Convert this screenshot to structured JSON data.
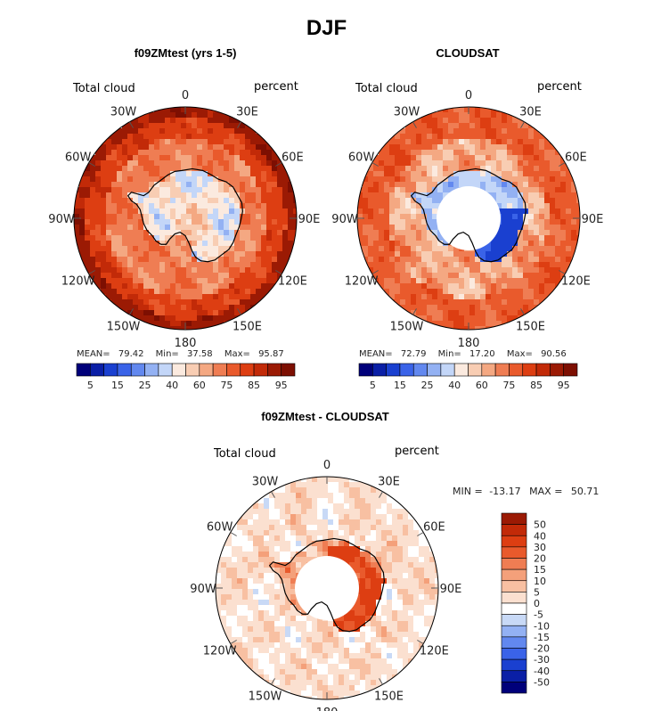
{
  "page_title": "DJF",
  "panels": [
    {
      "title": "f09ZMtest (yrs 1-5)",
      "left_label": "Total cloud",
      "right_label": "percent",
      "stats": {
        "mean_label": "MEAN=",
        "mean": "79.42",
        "min_label": "Min=",
        "min": "37.58",
        "max_label": "Max=",
        "max": "95.87"
      }
    },
    {
      "title": "CLOUDSAT",
      "left_label": "Total cloud",
      "right_label": "percent",
      "stats": {
        "mean_label": "MEAN=",
        "mean": "72.79",
        "min_label": "Min=",
        "min": "17.20",
        "max_label": "Max=",
        "max": "90.56"
      }
    },
    {
      "title": "f09ZMtest - CLOUDSAT",
      "left_label": "Total cloud",
      "right_label": "percent",
      "stats": {
        "min_label": "MIN =",
        "min": "-13.17",
        "max_label": "MAX =",
        "max": "50.71"
      }
    }
  ],
  "lon_labels": [
    "0",
    "30E",
    "60E",
    "90E",
    "120E",
    "150E",
    "180",
    "150W",
    "120W",
    "90W",
    "60W",
    "30W"
  ],
  "colors": {
    "abs_scale": [
      "#00007a",
      "#0a1fa6",
      "#1a40d0",
      "#3a63e8",
      "#6288ef",
      "#93b1f3",
      "#c3d6f8",
      "#fbeadf",
      "#f8cdb3",
      "#f4a882",
      "#ef7d53",
      "#e95a2c",
      "#dd3e12",
      "#c22a08",
      "#9b1a04",
      "#7d0f02"
    ],
    "diff_scale": [
      "#00007a",
      "#0a1fa6",
      "#1a40d0",
      "#3a63e8",
      "#6288ef",
      "#93b1f3",
      "#c8d9f6",
      "#ffffff",
      "#fbe0d0",
      "#f8c0a2",
      "#f4a07a",
      "#ef7d53",
      "#e95a2c",
      "#dd3e12",
      "#c22a08",
      "#9b1a04"
    ],
    "coast": "#000000"
  },
  "chart_data": [
    {
      "type": "heatmap",
      "title": "f09ZMtest (yrs 1-5)",
      "projection": "south polar stereographic",
      "variable": "Total cloud",
      "units": "percent",
      "colorbar_ticks": [
        5,
        15,
        25,
        40,
        60,
        75,
        85,
        95
      ],
      "mean": 79.42,
      "min": 37.58,
      "max": 95.87
    },
    {
      "type": "heatmap",
      "title": "CLOUDSAT",
      "projection": "south polar stereographic",
      "variable": "Total cloud",
      "units": "percent",
      "colorbar_ticks": [
        5,
        15,
        25,
        40,
        60,
        75,
        85,
        95
      ],
      "mean": 72.79,
      "min": 17.2,
      "max": 90.56
    },
    {
      "type": "heatmap",
      "title": "f09ZMtest - CLOUDSAT",
      "projection": "south polar stereographic",
      "variable": "Total cloud",
      "units": "percent",
      "colorbar_ticks": [
        50,
        40,
        30,
        20,
        15,
        10,
        5,
        0,
        -5,
        -10,
        -15,
        -20,
        -30,
        -40,
        -50
      ],
      "min": -13.17,
      "max": 50.71
    }
  ]
}
